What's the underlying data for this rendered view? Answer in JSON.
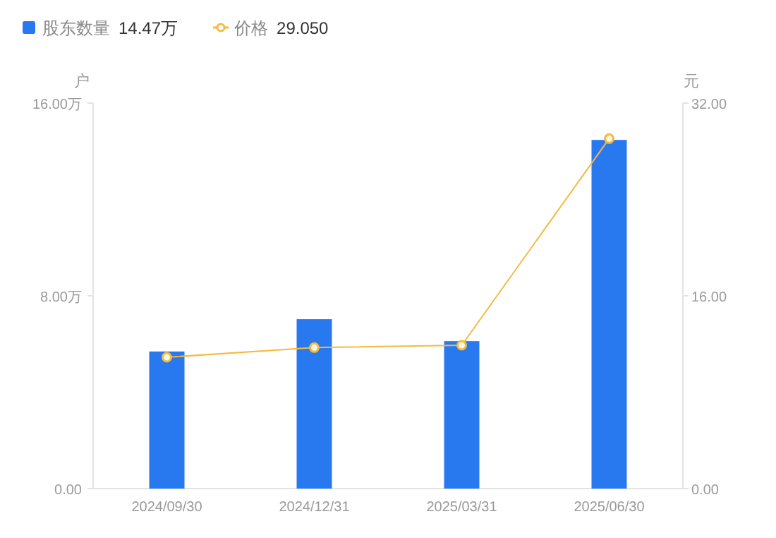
{
  "chart_data": {
    "type": "bar",
    "ylabel": "户",
    "y2label": "元",
    "categories": [
      "2024/09/30",
      "2024/12/31",
      "2025/03/31",
      "2025/06/30"
    ],
    "series": [
      {
        "name": "股东数量",
        "color": "#2878f0",
        "values": [
          5.69,
          7.03,
          6.12,
          14.47
        ]
      },
      {
        "name": "价格",
        "type": "line",
        "axis": "y2",
        "color": "#f5b940",
        "marker": "circle",
        "values": [
          10.9,
          11.7,
          11.9,
          29.05
        ]
      }
    ],
    "annotations": [
      "14.47万",
      "29.050"
    ],
    "ylim": [
      0,
      16
    ],
    "yticks": [
      {
        "value": 0,
        "label": "0.00"
      },
      {
        "value": 8,
        "label": "8.00万"
      },
      {
        "value": 16,
        "label": "16.00万"
      }
    ],
    "y2lim": [
      0,
      32
    ],
    "y2ticks": [
      {
        "value": 0,
        "label": "0.00"
      },
      {
        "value": 16,
        "label": "16.00"
      },
      {
        "value": 32,
        "label": "32.00"
      }
    ],
    "legend": "top left"
  }
}
